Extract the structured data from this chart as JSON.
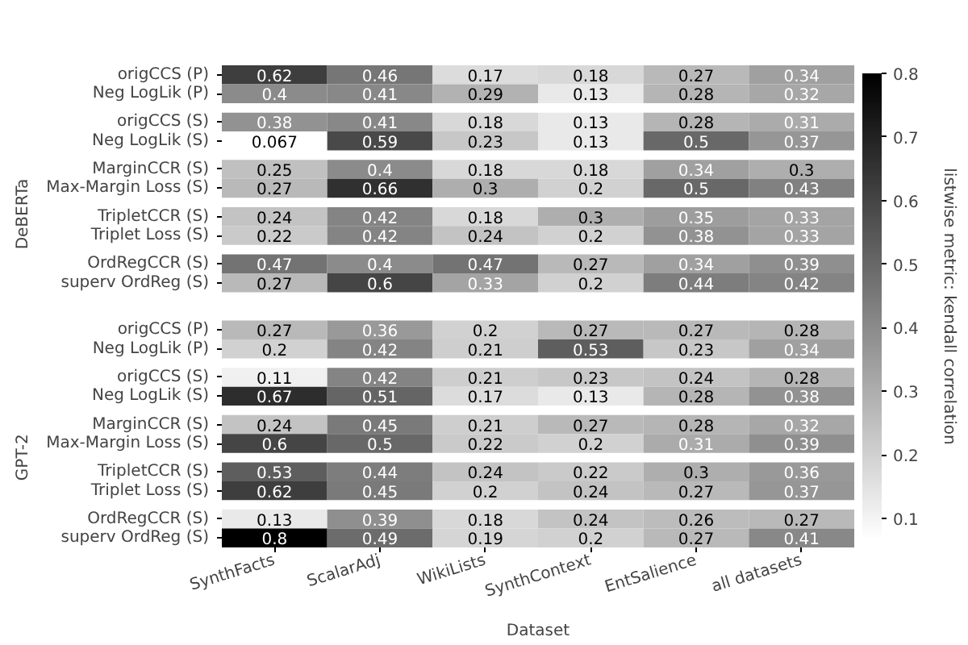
{
  "chart_data": {
    "type": "heatmap",
    "xlabel": "Dataset",
    "clabel": "listwise metric: kendall correlation",
    "categories": [
      "SynthFacts",
      "ScalarAdj",
      "WikiLists",
      "SynthContext",
      "EntSalience",
      "all datasets"
    ],
    "y_categories": [
      "origCCS (P)",
      "Neg LogLik (P)",
      "origCCS (S)",
      "Neg LogLik (S)",
      "MarginCCR (S)",
      "Max-Margin Loss (S)",
      "TripletCCR (S)",
      "Triplet Loss (S)",
      "OrdRegCCR (S)",
      "superv OrdReg (S)",
      "origCCS (P)",
      "Neg LogLik (P)",
      "origCCS (S)",
      "Neg LogLik (S)",
      "MarginCCR (S)",
      "Max-Margin Loss (S)",
      "TripletCCR (S)",
      "Triplet Loss (S)",
      "OrdRegCCR (S)",
      "superv OrdReg (S)"
    ],
    "cells": [
      [
        0.62,
        0.46,
        0.17,
        0.18,
        0.27,
        0.34
      ],
      [
        0.4,
        0.41,
        0.29,
        0.13,
        0.28,
        0.32
      ],
      [
        0.38,
        0.41,
        0.18,
        0.13,
        0.28,
        0.31
      ],
      [
        0.067,
        0.59,
        0.23,
        0.13,
        0.5,
        0.37
      ],
      [
        0.25,
        0.4,
        0.18,
        0.18,
        0.34,
        0.3
      ],
      [
        0.27,
        0.66,
        0.3,
        0.2,
        0.5,
        0.43
      ],
      [
        0.24,
        0.42,
        0.18,
        0.3,
        0.35,
        0.33
      ],
      [
        0.22,
        0.42,
        0.24,
        0.2,
        0.38,
        0.33
      ],
      [
        0.47,
        0.4,
        0.47,
        0.27,
        0.34,
        0.39
      ],
      [
        0.27,
        0.6,
        0.33,
        0.2,
        0.44,
        0.42
      ],
      [
        0.27,
        0.36,
        0.2,
        0.27,
        0.27,
        0.28
      ],
      [
        0.2,
        0.42,
        0.21,
        0.53,
        0.23,
        0.34
      ],
      [
        0.11,
        0.42,
        0.21,
        0.23,
        0.24,
        0.28
      ],
      [
        0.67,
        0.51,
        0.17,
        0.13,
        0.28,
        0.38
      ],
      [
        0.24,
        0.45,
        0.21,
        0.27,
        0.28,
        0.32
      ],
      [
        0.6,
        0.5,
        0.22,
        0.2,
        0.31,
        0.39
      ],
      [
        0.53,
        0.44,
        0.24,
        0.22,
        0.3,
        0.36
      ],
      [
        0.62,
        0.45,
        0.2,
        0.24,
        0.27,
        0.37
      ],
      [
        0.13,
        0.39,
        0.18,
        0.24,
        0.26,
        0.27
      ],
      [
        0.8,
        0.49,
        0.19,
        0.2,
        0.27,
        0.41
      ]
    ],
    "clim": [
      0.067,
      0.8
    ],
    "cticks": [
      0.1,
      0.2,
      0.3,
      0.4,
      0.5,
      0.6,
      0.7,
      0.8
    ],
    "data_labels": true,
    "annotations": [
      "DeBERTa",
      "GPT-2"
    ]
  }
}
